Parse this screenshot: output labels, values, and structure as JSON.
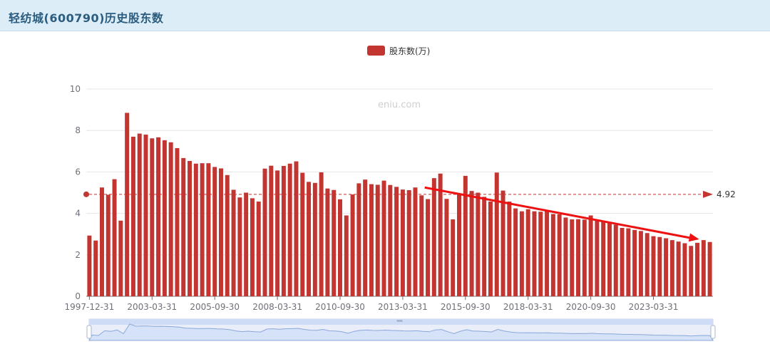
{
  "header": {
    "title": "轻纺城(600790)历史股东数"
  },
  "watermark": "eniu.com",
  "legend": {
    "label": "股东数(万)"
  },
  "colors": {
    "bar": "#c23531",
    "trend": "#ee1111",
    "markline": "#c23531",
    "header_bg": "#dcedf7",
    "title": "#2b5d80",
    "zoom_fill": "#d6e2f7",
    "zoom_line": "#8aa7dc"
  },
  "chart_data": {
    "type": "bar",
    "ylim": [
      0,
      10
    ],
    "yticks": [
      0,
      2,
      4,
      6,
      8,
      10
    ],
    "xtick_labels": [
      "1997-12-31",
      "2003-03-31",
      "2005-09-30",
      "2008-03-31",
      "2010-09-30",
      "2013-03-31",
      "2015-09-30",
      "2018-03-31",
      "2020-09-30",
      "2023-03-31"
    ],
    "xtick_indices": [
      0,
      10,
      20,
      30,
      40,
      50,
      60,
      70,
      80,
      90
    ],
    "series": [
      {
        "name": "股东数(万)",
        "values": [
          2.93,
          2.69,
          5.25,
          4.9,
          5.65,
          3.65,
          8.85,
          7.7,
          7.85,
          7.8,
          7.62,
          7.67,
          7.53,
          7.43,
          7.15,
          6.67,
          6.53,
          6.4,
          6.42,
          6.42,
          6.24,
          6.17,
          5.85,
          5.14,
          4.77,
          5.0,
          4.73,
          4.57,
          6.16,
          6.3,
          6.07,
          6.29,
          6.4,
          6.51,
          5.96,
          5.52,
          5.47,
          5.98,
          5.2,
          5.13,
          4.68,
          3.9,
          4.91,
          5.45,
          5.63,
          5.41,
          5.38,
          5.58,
          5.37,
          5.28,
          5.15,
          5.12,
          5.25,
          4.87,
          4.69,
          5.7,
          5.92,
          4.7,
          3.71,
          4.95,
          5.81,
          5.08,
          5.0,
          4.8,
          4.57,
          5.97,
          5.1,
          4.57,
          4.24,
          4.1,
          4.2,
          4.1,
          4.08,
          4.1,
          3.97,
          3.96,
          3.8,
          3.71,
          3.72,
          3.7,
          3.9,
          3.7,
          3.59,
          3.53,
          3.45,
          3.3,
          3.28,
          3.2,
          3.15,
          3.05,
          2.9,
          2.86,
          2.8,
          2.71,
          2.64,
          2.56,
          2.43,
          2.58,
          2.71,
          2.62
        ]
      }
    ],
    "markline": {
      "value": 4.92,
      "label": "4.92"
    },
    "trend_arrow": {
      "from": {
        "category": "2014-03-31",
        "value": 5.25
      },
      "to": {
        "category": "2024-06-30",
        "value": 2.75
      }
    }
  }
}
